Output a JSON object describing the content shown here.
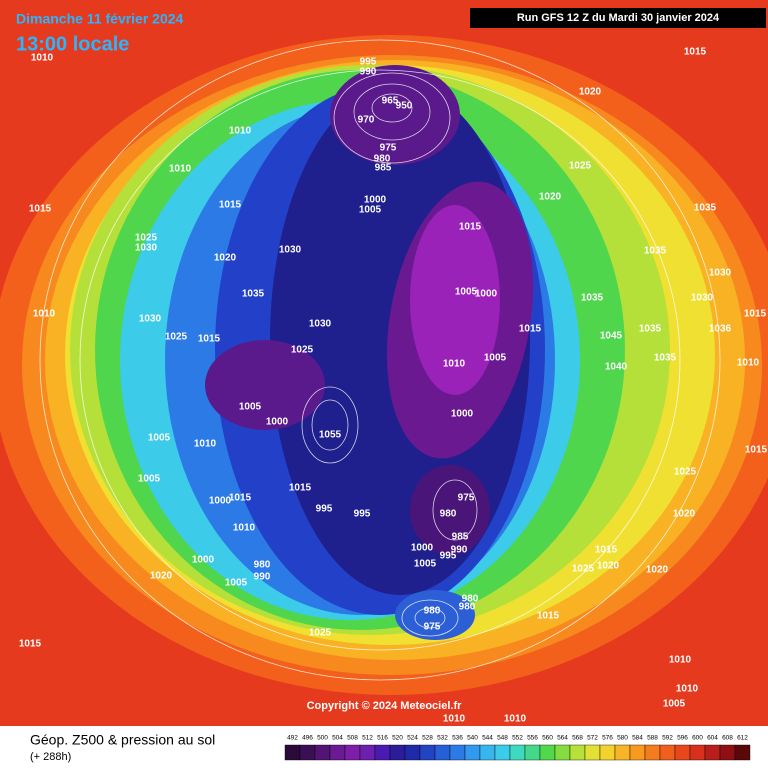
{
  "header": {
    "title": "Dimanche 11 février 2024",
    "subtitle": "13:00 locale",
    "run": "Run GFS 12 Z du Mardi 30 janvier 2024"
  },
  "map": {
    "copyright": "Copyright © 2024 Meteociel.fr",
    "isobar_labels": [
      1010,
      1015,
      1020,
      995,
      990,
      965,
      950,
      970,
      975,
      980,
      985,
      1010,
      1010,
      1025,
      1020,
      1015,
      1015,
      1000,
      1005,
      1035,
      1025,
      1030,
      1030,
      1015,
      1020,
      1035,
      1030,
      1035,
      1035,
      1005,
      1000,
      1030,
      1010,
      1030,
      1030,
      1015,
      1035,
      1025,
      1015,
      1045,
      1036,
      1015,
      1025,
      1035,
      1005,
      1010,
      1040,
      1010,
      1005,
      1000,
      1000,
      1055,
      1005,
      1010,
      1015,
      1025,
      1005,
      1015,
      975,
      1015,
      1000,
      995,
      995,
      980,
      1020,
      1010,
      985,
      990,
      1000,
      995,
      1015,
      1000,
      1005,
      1020,
      1025,
      1020,
      1005,
      980,
      990,
      1020,
      980,
      980,
      980,
      975,
      1015,
      1025,
      1015,
      1010,
      1010,
      1005,
      1010,
      1010
    ]
  },
  "footer": {
    "title": "Géop. Z500 & pression au sol",
    "lead": "(+ 288h)",
    "scale": [
      492,
      496,
      500,
      504,
      508,
      512,
      516,
      520,
      524,
      528,
      532,
      536,
      540,
      544,
      548,
      552,
      556,
      560,
      564,
      568,
      572,
      576,
      580,
      584,
      588,
      592,
      596,
      600,
      604,
      608,
      612
    ]
  }
}
